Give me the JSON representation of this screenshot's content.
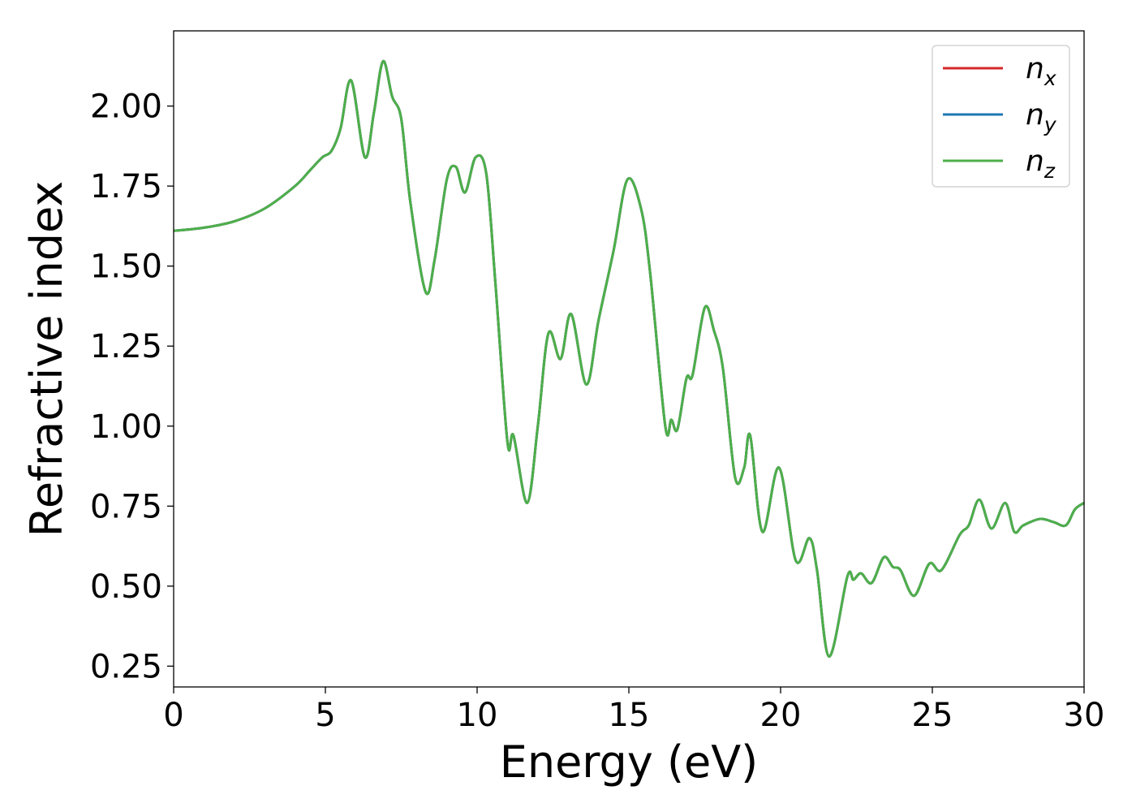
{
  "chart_data": {
    "type": "line",
    "title": "",
    "xlabel": "Energy (eV)",
    "ylabel": "Refractive index",
    "xlim": [
      0,
      30
    ],
    "ylim": [
      0.185,
      2.235
    ],
    "xticks": [
      0,
      5,
      10,
      15,
      20,
      25,
      30
    ],
    "xtick_labels": [
      "0",
      "5",
      "10",
      "15",
      "20",
      "25",
      "30"
    ],
    "yticks": [
      0.25,
      0.5,
      0.75,
      1.0,
      1.25,
      1.5,
      1.75,
      2.0
    ],
    "ytick_labels": [
      "0.25",
      "0.50",
      "0.75",
      "1.00",
      "1.25",
      "1.50",
      "1.75",
      "2.00"
    ],
    "grid": false,
    "legend_position": "top-right",
    "series": [
      {
        "name": "n",
        "subscript": "x",
        "color": "#d62728"
      },
      {
        "name": "n",
        "subscript": "y",
        "color": "#1f77b4"
      },
      {
        "name": "n",
        "subscript": "z",
        "color": "#4daf4a"
      }
    ],
    "x": [
      0,
      1,
      2,
      3,
      4,
      4.5,
      4.9,
      5.2,
      5.5,
      5.85,
      6.3,
      6.6,
      6.9,
      7.2,
      7.5,
      7.8,
      8.3,
      8.6,
      9.0,
      9.3,
      9.6,
      9.95,
      10.3,
      10.6,
      11.0,
      11.2,
      11.65,
      12.0,
      12.35,
      12.75,
      13.1,
      13.6,
      14.0,
      14.5,
      14.95,
      15.4,
      15.7,
      16.2,
      16.4,
      16.6,
      16.9,
      17.1,
      17.5,
      17.8,
      18.1,
      18.5,
      18.8,
      19.0,
      19.4,
      19.95,
      20.5,
      20.95,
      21.2,
      21.6,
      22.2,
      22.4,
      22.65,
      23.0,
      23.4,
      23.7,
      23.95,
      24.4,
      24.9,
      25.3,
      25.9,
      26.2,
      26.55,
      26.95,
      27.4,
      27.7,
      28.0,
      28.55,
      29.0,
      29.4,
      29.7,
      30.0
    ],
    "y": [
      1.61,
      1.62,
      1.64,
      1.68,
      1.75,
      1.8,
      1.84,
      1.86,
      1.93,
      2.08,
      1.84,
      1.98,
      2.14,
      2.03,
      1.96,
      1.7,
      1.42,
      1.52,
      1.77,
      1.81,
      1.73,
      1.84,
      1.79,
      1.45,
      0.95,
      0.97,
      0.76,
      1.0,
      1.29,
      1.21,
      1.35,
      1.13,
      1.33,
      1.55,
      1.77,
      1.68,
      1.48,
      1.0,
      1.02,
      0.99,
      1.15,
      1.16,
      1.37,
      1.3,
      1.18,
      0.84,
      0.87,
      0.97,
      0.67,
      0.87,
      0.58,
      0.65,
      0.55,
      0.28,
      0.53,
      0.52,
      0.54,
      0.51,
      0.59,
      0.56,
      0.55,
      0.47,
      0.57,
      0.55,
      0.66,
      0.69,
      0.77,
      0.68,
      0.76,
      0.67,
      0.69,
      0.71,
      0.7,
      0.69,
      0.74,
      0.76
    ]
  }
}
